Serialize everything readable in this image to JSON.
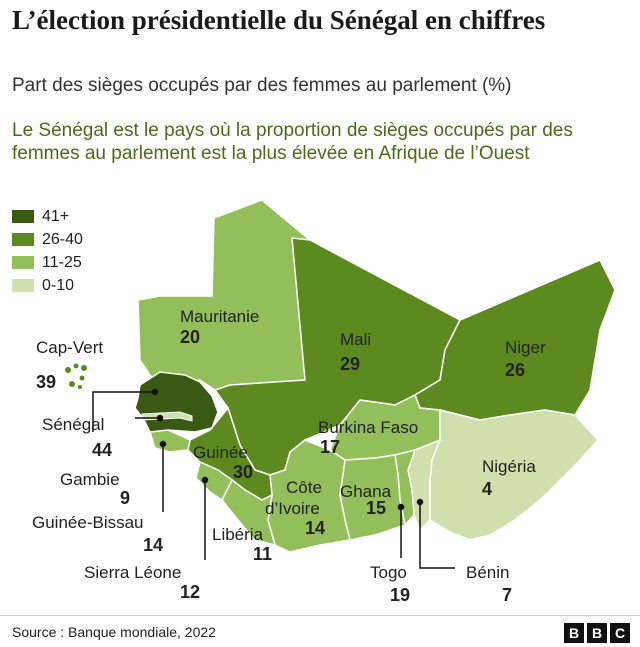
{
  "title": "L’élection présidentielle du Sénégal en chiffres",
  "subtitle": "Part des sièges occupés par des femmes au parlement (%)",
  "insight": "Le Sénégal est le pays où la proportion de sièges occupés par des femmes au parlement est la plus élevée en Afrique de l’Ouest",
  "legend": [
    {
      "label": "41+",
      "color": "#3a5a14"
    },
    {
      "label": "26-40",
      "color": "#5c8a1e"
    },
    {
      "label": "11-25",
      "color": "#93bf5a"
    },
    {
      "label": "0-10",
      "color": "#cfe0ac"
    }
  ],
  "countries": {
    "mauritanie": {
      "name": "Mauritanie",
      "value": "20"
    },
    "mali": {
      "name": "Mali",
      "value": "29"
    },
    "niger": {
      "name": "Niger",
      "value": "26"
    },
    "cap_vert": {
      "name": "Cap-Vert",
      "value": "39"
    },
    "senegal": {
      "name": "Sénégal",
      "value": "44"
    },
    "gambie": {
      "name": "Gambie",
      "value": "9"
    },
    "guinee_bissau": {
      "name": "Guinée-Bissau",
      "value": "14"
    },
    "sierra_leone": {
      "name": "Sierra Léone",
      "value": "12"
    },
    "guinee": {
      "name": "Guinée",
      "value": "30"
    },
    "liberia": {
      "name": "Libéria",
      "value": "11"
    },
    "cote_ivoire": {
      "name1": "Côte",
      "name2": "d’Ivoire",
      "value": "14"
    },
    "burkina_faso": {
      "name": "Burkina Faso",
      "value": "17"
    },
    "ghana": {
      "name": "Ghana",
      "value": "15"
    },
    "togo": {
      "name": "Togo",
      "value": "19"
    },
    "benin": {
      "name": "Bénin",
      "value": "7"
    },
    "nigeria": {
      "name": "Nigéria",
      "value": "4"
    }
  },
  "source": "Source : Banque mondiale, 2022",
  "brand": [
    "B",
    "B",
    "C"
  ]
}
